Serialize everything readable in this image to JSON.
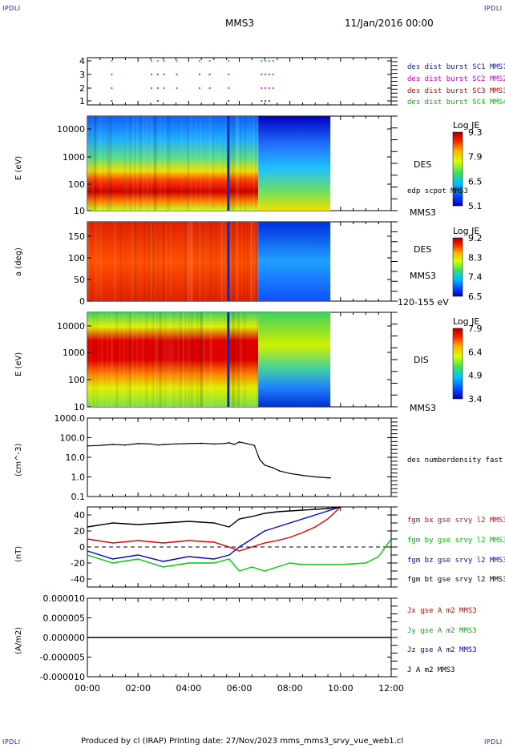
{
  "header": {
    "corner_label": "IPDLI",
    "spacecraft": "MMS3",
    "date": "11/Jan/2016 00:00"
  },
  "footer": {
    "text": "Produced by cl (IRAP)   Printing date: 27/Nov/2023   mms_mms3_srvy_vue_web1.cl"
  },
  "colors": {
    "des_burst_sc1": "#1010c0",
    "des_burst_sc2": "#cc00cc",
    "des_burst_sc3": "#cc0000",
    "des_burst_sc4": "#00bb00",
    "bx": "#e00000",
    "by": "#00cc00",
    "bz": "#0000ee",
    "bt": "#000000"
  },
  "time_axis": {
    "labels": [
      "00:00",
      "02:00",
      "04:00",
      "06:00",
      "08:00",
      "10:00",
      "12:00"
    ],
    "range_hours": [
      0,
      12
    ]
  },
  "chart_data": [
    {
      "id": "burst",
      "type": "scatter",
      "yticks": [
        "4",
        "3",
        "2",
        "1"
      ],
      "legend": [
        "des dist burst SC1 MMS1",
        "des dist burst SC2 MMS2",
        "des dist burst SC3 MMS3",
        "des dist burst SC4 MMS4"
      ],
      "series": [
        {
          "level": 1,
          "times_h": [
            0.93,
            2.75,
            5.55,
            6.85,
            7.0,
            7.15
          ]
        },
        {
          "level": 2,
          "times_h": [
            0.93,
            2.5,
            2.75,
            3.0,
            3.5,
            4.4,
            4.8,
            5.55,
            6.85,
            7.0,
            7.15,
            7.3
          ]
        },
        {
          "level": 3,
          "times_h": [
            0.93,
            2.5,
            2.75,
            3.0,
            3.5,
            4.4,
            4.8,
            5.55,
            6.85,
            7.0,
            7.15,
            7.3
          ]
        },
        {
          "level": 4,
          "times_h": [
            0.93,
            2.5,
            2.75,
            3.0,
            3.5,
            4.4,
            4.8,
            5.55,
            6.85,
            7.0,
            7.15,
            7.3
          ]
        }
      ]
    },
    {
      "id": "des_energy",
      "type": "heatmap",
      "ylabel": "E (eV)",
      "yticks": [
        "10000",
        "1000",
        "100",
        "10"
      ],
      "side_labels": [
        "DES",
        "edp scpot MMS3",
        "MMS3"
      ],
      "colorbar": {
        "title": "Log JE",
        "ticks": [
          "9.3",
          "7.9",
          "6.5",
          "5.1"
        ]
      },
      "data_end_h": 9.6
    },
    {
      "id": "des_pitch",
      "type": "heatmap",
      "ylabel": "a (deg)",
      "yticks": [
        "150",
        "100",
        "50",
        "0"
      ],
      "side_labels": [
        "DES",
        "MMS3",
        "120-155 eV"
      ],
      "colorbar": {
        "title": "Log JE",
        "ticks": [
          "9.2",
          "8.3",
          "7.4",
          "6.5"
        ]
      },
      "data_end_h": 9.6
    },
    {
      "id": "dis_energy",
      "type": "heatmap",
      "ylabel": "E (eV)",
      "yticks": [
        "10000",
        "1000",
        "100",
        "10"
      ],
      "side_labels": [
        "DIS",
        "MMS3"
      ],
      "colorbar": {
        "title": "Log JE",
        "ticks": [
          "7.9",
          "6.4",
          "4.9",
          "3.4"
        ]
      },
      "data_end_h": 9.6
    },
    {
      "id": "density",
      "type": "line",
      "ylabel": "(cm^-3)",
      "yticks": [
        "1000.0",
        "100.0",
        "10.0",
        "1.0",
        "0.1"
      ],
      "ylim": [
        0.1,
        1000
      ],
      "log": true,
      "side_labels": [
        "des numberdensity fast M"
      ],
      "x": [
        0.0,
        0.5,
        1.0,
        1.5,
        2.0,
        2.5,
        2.8,
        3.0,
        3.5,
        4.0,
        4.5,
        5.0,
        5.4,
        5.6,
        5.8,
        6.0,
        6.3,
        6.6,
        6.8,
        7.0,
        7.3,
        7.6,
        8.0,
        8.5,
        9.0,
        9.5,
        9.6
      ],
      "y": [
        38,
        40,
        45,
        42,
        50,
        48,
        42,
        45,
        48,
        50,
        52,
        48,
        50,
        55,
        45,
        60,
        50,
        40,
        8,
        4,
        3,
        2,
        1.5,
        1.2,
        1.0,
        0.9,
        0.9
      ]
    },
    {
      "id": "bfield",
      "type": "line",
      "ylabel": "(nT)",
      "yticks": [
        "40",
        "20",
        "0",
        "-20",
        "-40"
      ],
      "ylim": [
        -50,
        50
      ],
      "series": [
        {
          "name": "fgm bx gse srvy l2 MMS3",
          "x": [
            0,
            1,
            2,
            3,
            4,
            5,
            5.6,
            6.0,
            6.5,
            7.0,
            7.5,
            8.0,
            8.5,
            9.0,
            9.5,
            10.0
          ],
          "y": [
            10,
            5,
            8,
            5,
            8,
            6,
            0,
            -5,
            0,
            5,
            8,
            12,
            18,
            25,
            35,
            50
          ]
        },
        {
          "name": "fgm by gse srvy l2 MMS3",
          "x": [
            0,
            1,
            2,
            3,
            4,
            5,
            5.6,
            6.0,
            6.5,
            7.0,
            7.5,
            8.0,
            8.5,
            9.0,
            10.0,
            11.0,
            11.5,
            12.0
          ],
          "y": [
            -10,
            -20,
            -15,
            -25,
            -20,
            -20,
            -15,
            -30,
            -25,
            -30,
            -25,
            -20,
            -22,
            -22,
            -22,
            -20,
            -12,
            10
          ]
        },
        {
          "name": "fgm bz gse srvy l2 MMS3",
          "x": [
            0,
            1,
            2,
            3,
            4,
            5,
            5.6,
            6.0,
            6.5,
            7.0,
            7.5,
            8.0,
            8.5,
            9.0,
            9.5,
            10.0
          ],
          "y": [
            -5,
            -15,
            -10,
            -18,
            -12,
            -15,
            -10,
            0,
            10,
            20,
            25,
            30,
            35,
            40,
            45,
            50
          ]
        },
        {
          "name": "fgm bt gse srvy l2 MMS3",
          "x": [
            0,
            1,
            2,
            3,
            4,
            5,
            5.6,
            6.0,
            6.5,
            7.0,
            7.5,
            8.0,
            8.5,
            9.0,
            9.5,
            10.0
          ],
          "y": [
            25,
            30,
            28,
            30,
            32,
            30,
            25,
            35,
            38,
            42,
            44,
            45,
            46,
            47,
            48,
            50
          ]
        }
      ]
    },
    {
      "id": "current",
      "type": "line",
      "ylabel": "(A/m2)",
      "yticks": [
        "0.000010",
        "0.000005",
        "0.000000",
        "-0.000005",
        "-0.000010"
      ],
      "ylim": [
        -1e-05,
        1e-05
      ],
      "series": [
        {
          "name": "Jx gse A m2 MMS3"
        },
        {
          "name": "Jy gse A m2 MMS3"
        },
        {
          "name": "Jz gse A m2 MMS3"
        },
        {
          "name": "J A m2 MMS3"
        }
      ]
    }
  ]
}
